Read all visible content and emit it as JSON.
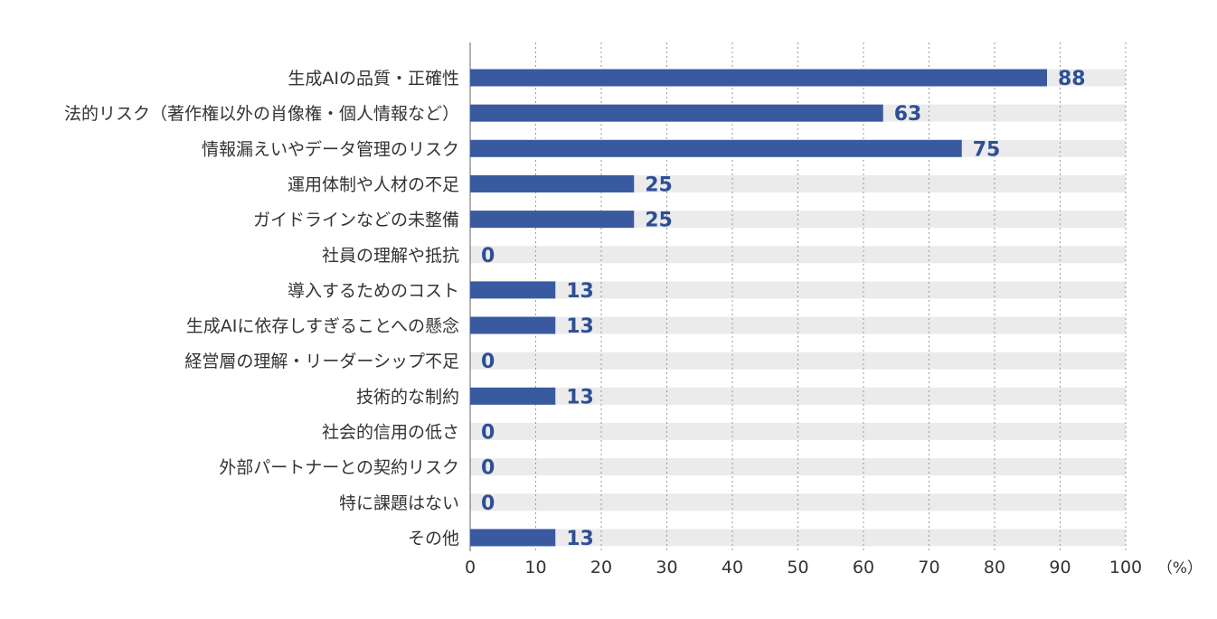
{
  "chart_data": {
    "type": "bar",
    "orientation": "horizontal",
    "categories": [
      "生成AIの品質・正確性",
      "法的リスク（著作権以外の肖像権・個人情報など）",
      "情報漏えいやデータ管理のリスク",
      "運用体制や人材の不足",
      "ガイドラインなどの未整備",
      "社員の理解や抵抗",
      "導入するためのコスト",
      "生成AIに依存しすぎることへの懸念",
      "経営層の理解・リーダーシップ不足",
      "技術的な制約",
      "社会的信用の低さ",
      "外部パートナーとの契約リスク",
      "特に課題はない",
      "その他"
    ],
    "values": [
      88,
      63,
      75,
      25,
      25,
      0,
      13,
      13,
      0,
      13,
      0,
      0,
      0,
      13
    ],
    "value_labels": [
      "88",
      "63",
      "75",
      "25",
      "25",
      "0",
      "13",
      "13",
      "0",
      "13",
      "0",
      "0",
      "0",
      "13"
    ],
    "xlim": [
      0,
      100
    ],
    "x_ticks": [
      "0",
      "10",
      "20",
      "30",
      "40",
      "50",
      "60",
      "70",
      "80",
      "90",
      "100"
    ],
    "x_unit_label": "（%）",
    "grid": "vertical dotted",
    "colors": {
      "bar": "#3a5aa0",
      "track": "#ebebeb",
      "value_label": "#2e4f96",
      "grid": "#9a9a9a",
      "text": "#333333"
    }
  }
}
